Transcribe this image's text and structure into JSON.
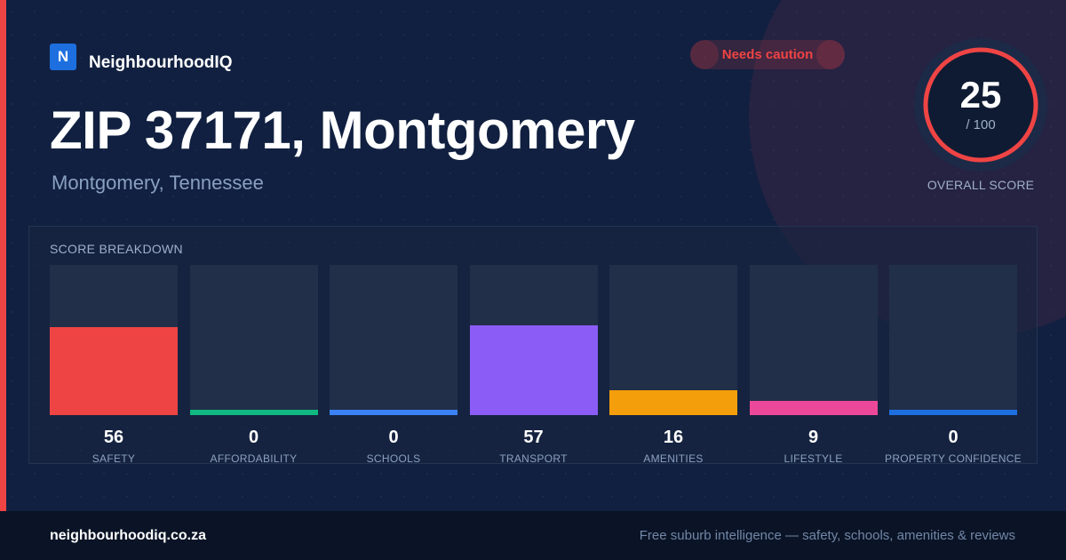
{
  "brand": {
    "logo_letter": "N",
    "name": "NeighbourhoodIQ"
  },
  "status_badge": {
    "label": "Needs caution",
    "color": "#ef4444"
  },
  "location": {
    "title": "ZIP 37171, Montgomery",
    "subtitle": "Montgomery, Tennessee"
  },
  "overall_score": {
    "value": "25",
    "max_label": "/ 100",
    "fraction": 0.25,
    "label": "OVERALL SCORE",
    "ring_color": "#ef4444"
  },
  "breakdown": {
    "title": "SCORE BREAKDOWN",
    "items": [
      {
        "label": "SAFETY",
        "value": 56,
        "color": "#ef4444"
      },
      {
        "label": "AFFORDABILITY",
        "value": 0,
        "color": "#10b981"
      },
      {
        "label": "SCHOOLS",
        "value": 0,
        "color": "#3b82f6"
      },
      {
        "label": "TRANSPORT",
        "value": 57,
        "color": "#8b5cf6"
      },
      {
        "label": "AMENITIES",
        "value": 16,
        "color": "#f59e0b"
      },
      {
        "label": "LIFESTYLE",
        "value": 9,
        "color": "#ec4899"
      },
      {
        "label": "PROPERTY CONFIDENCE",
        "value": 0,
        "color": "#1d6fe0"
      }
    ]
  },
  "footer": {
    "url": "neighbourhoodiq.co.za",
    "tagline": "Free suburb intelligence — safety, schools, amenities & reviews"
  },
  "colors": {
    "background": "#112040",
    "accent": "#ef4444",
    "brand": "#1d6fe0"
  }
}
